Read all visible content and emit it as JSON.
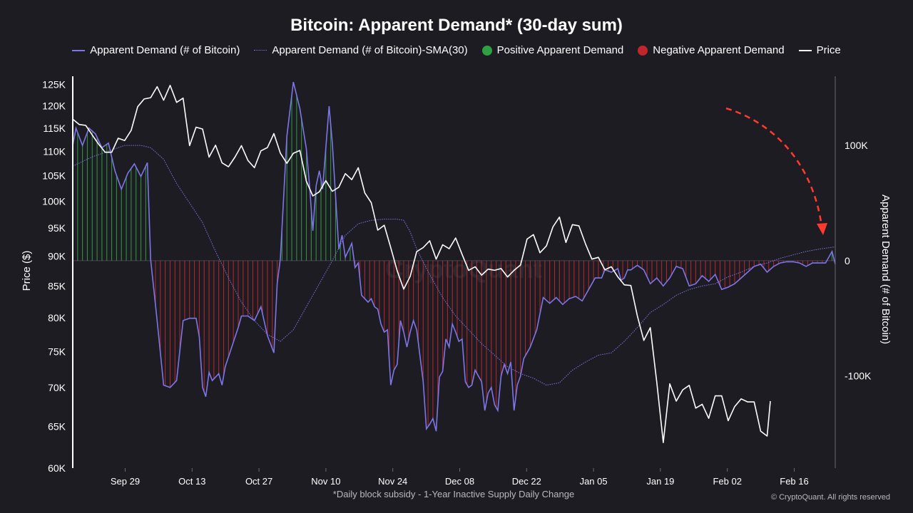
{
  "chart_data": {
    "type": "line",
    "title": "Bitcoin: Apparent Demand* (30-day sum)",
    "footnote": "*Daily block subsidy - 1-Year Inactive Supply Daily Change",
    "copyright": "© CryptoQuant. All rights reserved",
    "watermark": "CryptoQuant",
    "legend": {
      "apparent_demand": "Apparent Demand (# of Bitcoin)",
      "sma": "Apparent Demand (# of Bitcoin)-SMA(30)",
      "positive": "Positive Apparent Demand",
      "negative": "Negative Apparent Demand",
      "price": "Price"
    },
    "colors": {
      "demand": "#7d76e8",
      "positive": "#2ea043",
      "negative": "#c0272d",
      "price": "#ffffff",
      "annotation": "#ff3b30"
    },
    "x_axis": {
      "ticks": [
        "Sep 29",
        "Oct 13",
        "Oct 27",
        "Nov 10",
        "Nov 24",
        "Dec 08",
        "Dec 22",
        "Jan 05",
        "Jan 19",
        "Feb 02",
        "Feb 16"
      ],
      "start_day": -6,
      "end_day": 147
    },
    "y_left": {
      "label": "Price ($)",
      "scale": "log",
      "range": [
        60000,
        127000
      ],
      "ticks": [
        "125K",
        "120K",
        "115K",
        "110K",
        "105K",
        "100K",
        "95K",
        "90K",
        "85K",
        "80K",
        "75K",
        "70K",
        "65K",
        "60K"
      ],
      "tick_values": [
        125000,
        120000,
        115000,
        110000,
        105000,
        100000,
        95000,
        90000,
        85000,
        80000,
        75000,
        70000,
        65000,
        60000
      ]
    },
    "y_right": {
      "label": "Apparent Demand (# of Bitcoin)",
      "range": [
        -180000,
        160000
      ],
      "ticks": [
        "100K",
        "0",
        "-100K"
      ],
      "tick_values": [
        100000,
        0,
        -100000
      ]
    },
    "demand_key": [
      [
        -6,
        100000
      ],
      [
        -5,
        115000
      ],
      [
        -3,
        100000
      ],
      [
        -1,
        115000
      ],
      [
        1,
        110000
      ],
      [
        3,
        98000
      ],
      [
        5,
        102000
      ],
      [
        7,
        78000
      ],
      [
        9,
        62000
      ],
      [
        11,
        76000
      ],
      [
        13,
        84000
      ],
      [
        15,
        73000
      ],
      [
        17,
        85000
      ],
      [
        18,
        1000
      ],
      [
        20,
        -52000
      ],
      [
        22,
        -108000
      ],
      [
        24,
        -110000
      ],
      [
        26,
        -104000
      ],
      [
        28,
        -52000
      ],
      [
        30,
        -50000
      ],
      [
        32,
        -50000
      ],
      [
        33,
        -66000
      ],
      [
        34,
        -110000
      ],
      [
        35,
        -118000
      ],
      [
        36,
        -97000
      ],
      [
        37,
        -104000
      ],
      [
        39,
        -98000
      ],
      [
        40,
        -108000
      ],
      [
        41,
        -92000
      ],
      [
        43,
        -75000
      ],
      [
        45,
        -58000
      ],
      [
        46,
        -48000
      ],
      [
        48,
        -48000
      ],
      [
        50,
        -52000
      ],
      [
        52,
        -40000
      ],
      [
        54,
        -65000
      ],
      [
        56,
        -80000
      ],
      [
        57,
        -20000
      ],
      [
        58,
        2000
      ],
      [
        60,
        108000
      ],
      [
        62,
        155000
      ],
      [
        64,
        132000
      ],
      [
        66,
        97000
      ],
      [
        67,
        64000
      ],
      [
        68,
        26000
      ],
      [
        69,
        65000
      ],
      [
        70,
        78000
      ],
      [
        71,
        62000
      ],
      [
        73,
        134000
      ],
      [
        74,
        102000
      ],
      [
        76,
        10000
      ],
      [
        77,
        22000
      ],
      [
        78,
        3000
      ],
      [
        80,
        15000
      ],
      [
        81,
        -6000
      ],
      [
        82,
        -2000
      ],
      [
        83,
        -30000
      ],
      [
        85,
        -36000
      ],
      [
        86,
        -33000
      ],
      [
        87,
        -40000
      ],
      [
        88,
        -42000
      ],
      [
        89,
        -55000
      ],
      [
        90,
        -62000
      ],
      [
        91,
        -60000
      ],
      [
        92,
        -108000
      ],
      [
        93,
        -95000
      ],
      [
        94,
        -90000
      ],
      [
        95,
        -52000
      ],
      [
        96,
        -62000
      ],
      [
        97,
        -75000
      ],
      [
        98,
        -62000
      ],
      [
        99,
        -52000
      ],
      [
        100,
        -60000
      ],
      [
        102,
        -105000
      ],
      [
        103,
        -146000
      ],
      [
        104,
        -142000
      ],
      [
        105,
        -137000
      ],
      [
        106,
        -148000
      ],
      [
        107,
        -101000
      ],
      [
        108,
        -96000
      ],
      [
        109,
        -68000
      ],
      [
        110,
        -75000
      ],
      [
        111,
        -55000
      ],
      [
        112,
        -62000
      ],
      [
        113,
        -70000
      ],
      [
        114,
        -68000
      ],
      [
        115,
        -105000
      ],
      [
        116,
        -110000
      ],
      [
        117,
        -108000
      ],
      [
        118,
        -95000
      ],
      [
        120,
        -105000
      ],
      [
        121,
        -130000
      ],
      [
        122,
        -115000
      ],
      [
        123,
        -110000
      ],
      [
        124,
        -125000
      ],
      [
        125,
        -130000
      ],
      [
        126,
        -100000
      ],
      [
        127,
        -90000
      ],
      [
        128,
        -98000
      ],
      [
        129,
        -88000
      ],
      [
        130,
        -130000
      ],
      [
        131,
        -108000
      ],
      [
        132,
        -100000
      ],
      [
        133,
        -85000
      ],
      [
        135,
        -75000
      ],
      [
        137,
        -60000
      ],
      [
        139,
        -32000
      ],
      [
        141,
        -37000
      ],
      [
        143,
        -32000
      ],
      [
        145,
        -38000
      ],
      [
        147,
        -33000
      ],
      [
        149,
        -31000
      ],
      [
        151,
        -35000
      ],
      [
        153,
        -25000
      ],
      [
        155,
        -15000
      ],
      [
        157,
        -15000
      ],
      [
        158,
        -8000
      ],
      [
        160,
        -10000
      ],
      [
        162,
        -7000
      ],
      [
        163,
        -17000
      ],
      [
        164,
        -15000
      ],
      [
        165,
        -8000
      ],
      [
        166,
        -8000
      ],
      [
        168,
        -4000
      ],
      [
        170,
        -8000
      ],
      [
        172,
        -20000
      ],
      [
        174,
        -15000
      ],
      [
        176,
        -22000
      ],
      [
        178,
        -15000
      ],
      [
        180,
        -5000
      ],
      [
        182,
        -7000
      ],
      [
        184,
        -22000
      ],
      [
        186,
        -20000
      ],
      [
        188,
        -13000
      ],
      [
        190,
        -18000
      ],
      [
        192,
        -12000
      ],
      [
        194,
        -25000
      ],
      [
        196,
        -23000
      ],
      [
        198,
        -20000
      ],
      [
        200,
        -15000
      ],
      [
        204,
        -5000
      ],
      [
        206,
        -3000
      ],
      [
        208,
        -10000
      ],
      [
        210,
        -5000
      ],
      [
        212,
        -2000
      ],
      [
        214,
        -1000
      ],
      [
        216,
        -1000
      ],
      [
        218,
        -2000
      ],
      [
        220,
        -5000
      ],
      [
        222,
        -2000
      ],
      [
        224,
        -2000
      ],
      [
        226,
        -2000
      ],
      [
        228,
        8000
      ],
      [
        229,
        -3000
      ]
    ],
    "sma_key": [
      [
        -6,
        82000
      ],
      [
        0,
        90000
      ],
      [
        5,
        95000
      ],
      [
        10,
        100000
      ],
      [
        15,
        100000
      ],
      [
        18,
        98000
      ],
      [
        22,
        88000
      ],
      [
        26,
        67000
      ],
      [
        30,
        50000
      ],
      [
        34,
        33000
      ],
      [
        38,
        8000
      ],
      [
        42,
        -15000
      ],
      [
        46,
        -36000
      ],
      [
        50,
        -52000
      ],
      [
        54,
        -64000
      ],
      [
        58,
        -70000
      ],
      [
        62,
        -60000
      ],
      [
        66,
        -40000
      ],
      [
        70,
        -20000
      ],
      [
        74,
        0
      ],
      [
        78,
        22000
      ],
      [
        82,
        32000
      ],
      [
        86,
        35000
      ],
      [
        90,
        36000
      ],
      [
        94,
        36000
      ],
      [
        96,
        35000
      ],
      [
        98,
        25000
      ],
      [
        100,
        10000
      ],
      [
        104,
        -12000
      ],
      [
        108,
        -32000
      ],
      [
        112,
        -48000
      ],
      [
        116,
        -60000
      ],
      [
        120,
        -72000
      ],
      [
        124,
        -82000
      ],
      [
        128,
        -92000
      ],
      [
        132,
        -98000
      ],
      [
        136,
        -102000
      ],
      [
        140,
        -108000
      ],
      [
        144,
        -106000
      ],
      [
        148,
        -95000
      ],
      [
        152,
        -88000
      ],
      [
        156,
        -82000
      ],
      [
        160,
        -80000
      ],
      [
        164,
        -70000
      ],
      [
        168,
        -58000
      ],
      [
        172,
        -45000
      ],
      [
        176,
        -38000
      ],
      [
        180,
        -30000
      ],
      [
        184,
        -25000
      ],
      [
        188,
        -22000
      ],
      [
        192,
        -20000
      ],
      [
        196,
        -14000
      ],
      [
        200,
        -10000
      ],
      [
        204,
        -5000
      ],
      [
        208,
        -2000
      ],
      [
        212,
        2000
      ],
      [
        216,
        5000
      ],
      [
        220,
        8000
      ],
      [
        224,
        10000
      ],
      [
        229,
        12000
      ]
    ],
    "price_key": [
      [
        -6,
        117000
      ],
      [
        -4,
        115800
      ],
      [
        -2,
        115600
      ],
      [
        0,
        113500
      ],
      [
        2,
        111500
      ],
      [
        4,
        109800
      ],
      [
        6,
        109800
      ],
      [
        8,
        112800
      ],
      [
        10,
        112300
      ],
      [
        12,
        114500
      ],
      [
        14,
        119800
      ],
      [
        16,
        121600
      ],
      [
        18,
        121900
      ],
      [
        20,
        124500
      ],
      [
        22,
        121300
      ],
      [
        24,
        124800
      ],
      [
        26,
        120800
      ],
      [
        28,
        121800
      ],
      [
        30,
        111200
      ],
      [
        32,
        115200
      ],
      [
        34,
        114800
      ],
      [
        36,
        108800
      ],
      [
        38,
        111300
      ],
      [
        40,
        107600
      ],
      [
        42,
        106800
      ],
      [
        44,
        108800
      ],
      [
        46,
        111200
      ],
      [
        48,
        108100
      ],
      [
        50,
        106600
      ],
      [
        52,
        110100
      ],
      [
        54,
        110800
      ],
      [
        56,
        113800
      ],
      [
        58,
        109600
      ],
      [
        60,
        107500
      ],
      [
        62,
        109600
      ],
      [
        64,
        110200
      ],
      [
        66,
        103900
      ],
      [
        68,
        101000
      ],
      [
        70,
        101800
      ],
      [
        72,
        104000
      ],
      [
        74,
        101900
      ],
      [
        76,
        102700
      ],
      [
        78,
        105400
      ],
      [
        80,
        104200
      ],
      [
        82,
        106600
      ],
      [
        84,
        101600
      ],
      [
        86,
        99700
      ],
      [
        88,
        94600
      ],
      [
        90,
        95500
      ],
      [
        92,
        91500
      ],
      [
        94,
        87500
      ],
      [
        96,
        84500
      ],
      [
        98,
        86600
      ],
      [
        100,
        90800
      ],
      [
        102,
        91500
      ],
      [
        104,
        92700
      ],
      [
        106,
        89500
      ],
      [
        108,
        92000
      ],
      [
        110,
        91300
      ],
      [
        112,
        93200
      ],
      [
        114,
        90300
      ],
      [
        116,
        87600
      ],
      [
        118,
        88200
      ],
      [
        120,
        86800
      ],
      [
        122,
        87800
      ],
      [
        124,
        87600
      ],
      [
        126,
        87900
      ],
      [
        128,
        86500
      ],
      [
        130,
        87600
      ],
      [
        132,
        88500
      ],
      [
        134,
        93000
      ],
      [
        136,
        93800
      ],
      [
        138,
        90600
      ],
      [
        140,
        91800
      ],
      [
        142,
        95200
      ],
      [
        144,
        97000
      ],
      [
        146,
        92400
      ],
      [
        148,
        95600
      ],
      [
        150,
        95400
      ],
      [
        152,
        92200
      ],
      [
        154,
        89500
      ],
      [
        156,
        89800
      ],
      [
        158,
        87700
      ],
      [
        160,
        88200
      ],
      [
        162,
        86500
      ],
      [
        164,
        85200
      ],
      [
        166,
        85100
      ],
      [
        168,
        80300
      ],
      [
        170,
        76600
      ],
      [
        172,
        78500
      ],
      [
        174,
        70700
      ],
      [
        176,
        63000
      ],
      [
        178,
        70500
      ],
      [
        180,
        68200
      ],
      [
        182,
        69700
      ],
      [
        184,
        70300
      ],
      [
        186,
        67300
      ],
      [
        188,
        67800
      ],
      [
        190,
        66000
      ],
      [
        192,
        68900
      ],
      [
        194,
        68900
      ],
      [
        196,
        65700
      ],
      [
        198,
        67500
      ],
      [
        200,
        68500
      ],
      [
        202,
        68100
      ],
      [
        204,
        68100
      ],
      [
        206,
        64400
      ],
      [
        208,
        63800
      ],
      [
        209,
        68200
      ]
    ]
  }
}
